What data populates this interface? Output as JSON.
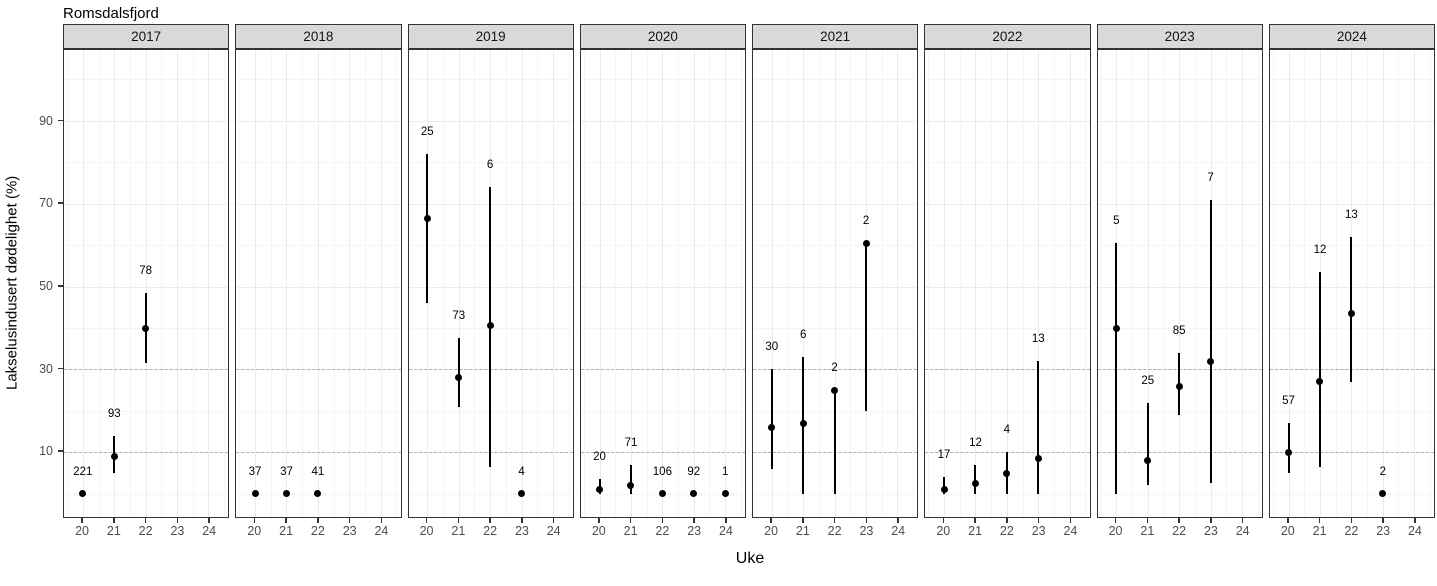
{
  "title": "Romsdalsfjord",
  "axes": {
    "y_label": "Lakselusindusert dødelighet (%)",
    "x_label": "Uke",
    "y_ticks": [
      90,
      70,
      50,
      30,
      10
    ],
    "x_ticks": [
      20,
      21,
      22,
      23,
      24
    ]
  },
  "colors": {
    "strip_fill": "#d9d9d9",
    "panel_border": "#333333",
    "grid_major": "#ebebeb",
    "grid_minor": "#f5f5f5",
    "threshold_dash": "#b0b0b0",
    "tick_label": "#4d4d4d",
    "data": "#000000"
  },
  "chart_data": {
    "type": "scatter",
    "title": "Romsdalsfjord",
    "xlabel": "Uke",
    "ylabel": "Lakselusindusert dødelighet (%)",
    "x_ticks": [
      20,
      21,
      22,
      23,
      24
    ],
    "y_ticks": [
      10,
      30,
      50,
      70,
      90
    ],
    "y_range": [
      -5.6,
      107.1
    ],
    "x_range": [
      19.4,
      24.65
    ],
    "grid": true,
    "threshold_lines_y": [
      10,
      30
    ],
    "point_style": "filled-circle with vertical CI bar, count label above",
    "facets": [
      {
        "year": "2017",
        "points": [
          {
            "week": 20,
            "n_label": "221",
            "value": 0,
            "ci_low": null,
            "ci_high": null
          },
          {
            "week": 21,
            "n_label": "93",
            "value": 9,
            "ci_low": 5,
            "ci_high": 14
          },
          {
            "week": 22,
            "n_label": "78",
            "value": 40,
            "ci_low": 31.5,
            "ci_high": 48.5
          }
        ]
      },
      {
        "year": "2018",
        "points": [
          {
            "week": 20,
            "n_label": "37",
            "value": 0,
            "ci_low": null,
            "ci_high": null
          },
          {
            "week": 21,
            "n_label": "37",
            "value": 0,
            "ci_low": null,
            "ci_high": null
          },
          {
            "week": 22,
            "n_label": "41",
            "value": 0,
            "ci_low": null,
            "ci_high": null
          }
        ]
      },
      {
        "year": "2019",
        "points": [
          {
            "week": 20,
            "n_label": "25",
            "value": 66.5,
            "ci_low": 46,
            "ci_high": 82
          },
          {
            "week": 21,
            "n_label": "73",
            "value": 28,
            "ci_low": 21,
            "ci_high": 37.5
          },
          {
            "week": 22,
            "n_label": "6",
            "value": 40.5,
            "ci_low": 6.5,
            "ci_high": 74
          },
          {
            "week": 23,
            "n_label": "4",
            "value": 0,
            "ci_low": null,
            "ci_high": null
          }
        ]
      },
      {
        "year": "2020",
        "points": [
          {
            "week": 20,
            "n_label": "20",
            "value": 1,
            "ci_low": 0,
            "ci_high": 3.5
          },
          {
            "week": 21,
            "n_label": "71",
            "value": 2,
            "ci_low": 0,
            "ci_high": 7
          },
          {
            "week": 22,
            "n_label": "106",
            "value": 0,
            "ci_low": null,
            "ci_high": null
          },
          {
            "week": 23,
            "n_label": "92",
            "value": 0,
            "ci_low": null,
            "ci_high": null
          },
          {
            "week": 24,
            "n_label": "1",
            "value": 0,
            "ci_low": null,
            "ci_high": null
          }
        ]
      },
      {
        "year": "2021",
        "points": [
          {
            "week": 20,
            "n_label": "30",
            "value": 16,
            "ci_low": 6,
            "ci_high": 30
          },
          {
            "week": 21,
            "n_label": "6",
            "value": 17,
            "ci_low": 0,
            "ci_high": 33
          },
          {
            "week": 22,
            "n_label": "2",
            "value": 25,
            "ci_low": 0,
            "ci_high": 25
          },
          {
            "week": 23,
            "n_label": "2",
            "value": 60.5,
            "ci_low": 20,
            "ci_high": 60.5
          }
        ]
      },
      {
        "year": "2022",
        "points": [
          {
            "week": 20,
            "n_label": "17",
            "value": 1,
            "ci_low": 0,
            "ci_high": 4
          },
          {
            "week": 21,
            "n_label": "12",
            "value": 2.5,
            "ci_low": 0,
            "ci_high": 7
          },
          {
            "week": 22,
            "n_label": "4",
            "value": 5,
            "ci_low": 0,
            "ci_high": 10
          },
          {
            "week": 23,
            "n_label": "13",
            "value": 8.5,
            "ci_low": 0,
            "ci_high": 32
          }
        ]
      },
      {
        "year": "2023",
        "points": [
          {
            "week": 20,
            "n_label": "5",
            "value": 40,
            "ci_low": 0,
            "ci_high": 60.5
          },
          {
            "week": 21,
            "n_label": "25",
            "value": 8,
            "ci_low": 2,
            "ci_high": 22
          },
          {
            "week": 22,
            "n_label": "85",
            "value": 26,
            "ci_low": 19,
            "ci_high": 34
          },
          {
            "week": 23,
            "n_label": "7",
            "value": 32,
            "ci_low": 2.5,
            "ci_high": 71
          }
        ]
      },
      {
        "year": "2024",
        "points": [
          {
            "week": 20,
            "n_label": "57",
            "value": 10,
            "ci_low": 5,
            "ci_high": 17
          },
          {
            "week": 21,
            "n_label": "12",
            "value": 27,
            "ci_low": 6.5,
            "ci_high": 53.5
          },
          {
            "week": 22,
            "n_label": "13",
            "value": 43.5,
            "ci_low": 27,
            "ci_high": 62
          },
          {
            "week": 23,
            "n_label": "2",
            "value": 0,
            "ci_low": null,
            "ci_high": null
          }
        ]
      }
    ]
  }
}
